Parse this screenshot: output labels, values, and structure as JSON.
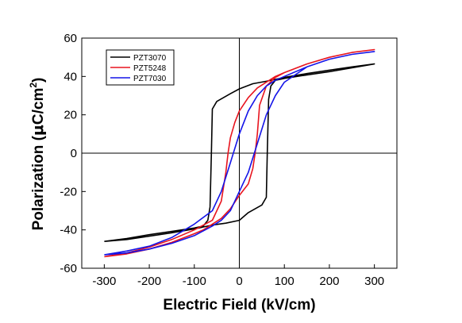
{
  "chart_data": {
    "type": "line",
    "title": "",
    "xlabel": "Electric Field (kV/cm)",
    "ylabel": {
      "main": "Polarization (",
      "mu": "μ",
      "unit": "C/cm",
      "sup": "2",
      "close": ")"
    },
    "xlim": [
      -350,
      350
    ],
    "ylim": [
      -60,
      60
    ],
    "xticks": [
      -300,
      -200,
      -100,
      0,
      100,
      200,
      300
    ],
    "yticks": [
      -60,
      -40,
      -20,
      0,
      20,
      40,
      60
    ],
    "reference_lines": {
      "x": 0,
      "y": 0
    },
    "grid": false,
    "legend_position": "top-left",
    "series": [
      {
        "name": "PZT3070",
        "color": "#000000",
        "x": [
          -300,
          -250,
          -200,
          -150,
          -100,
          -80,
          -70,
          -65,
          -62,
          -60,
          -50,
          -20,
          0,
          30,
          60,
          80,
          100,
          150,
          200,
          250,
          300,
          250,
          200,
          150,
          100,
          80,
          70,
          65,
          62,
          60,
          50,
          20,
          0,
          -30,
          -60,
          -80,
          -100,
          -150,
          -200,
          -250,
          -300
        ],
        "y": [
          -46,
          -44.5,
          -42.5,
          -40.8,
          -39,
          -38,
          -35,
          -28,
          0,
          23,
          27,
          31,
          33.5,
          36.2,
          37.5,
          38.5,
          39.5,
          41.5,
          43.3,
          45,
          46.5,
          44.5,
          42.5,
          40.8,
          39,
          38,
          35,
          28,
          0,
          -23,
          -27,
          -31,
          -35,
          -36.5,
          -37.5,
          -38.5,
          -39.5,
          -41.5,
          -43.3,
          -45,
          -46
        ]
      },
      {
        "name": "PZT5248",
        "color": "#e8141e",
        "x": [
          -300,
          -250,
          -200,
          -150,
          -100,
          -60,
          -40,
          -30,
          -25,
          -20,
          -10,
          0,
          20,
          40,
          60,
          80,
          100,
          150,
          200,
          250,
          300,
          250,
          200,
          150,
          100,
          80,
          60,
          45,
          40,
          35,
          30,
          20,
          0,
          -20,
          -40,
          -60,
          -80,
          -100,
          -150,
          -200,
          -250,
          -300
        ],
        "y": [
          -54,
          -52,
          -49,
          -45,
          -40,
          -35,
          -25,
          -10,
          0,
          8,
          16,
          22,
          29,
          34,
          37,
          40,
          42,
          46.5,
          50,
          52.5,
          54,
          52.5,
          50,
          46.5,
          42,
          39.5,
          35,
          25,
          10,
          0,
          -8,
          -16,
          -22,
          -29,
          -34,
          -37,
          -40,
          -42,
          -46.5,
          -50,
          -52.5,
          -54
        ]
      },
      {
        "name": "PZT7030",
        "color": "#1414e8",
        "x": [
          -300,
          -250,
          -200,
          -150,
          -100,
          -60,
          -40,
          -20,
          0,
          20,
          40,
          60,
          80,
          100,
          150,
          200,
          250,
          300,
          250,
          200,
          150,
          100,
          80,
          60,
          40,
          20,
          0,
          -20,
          -40,
          -60,
          -80,
          -100,
          -150,
          -200,
          -250,
          -300
        ],
        "y": [
          -53,
          -51,
          -48.5,
          -44,
          -37,
          -30,
          -20,
          -5,
          10,
          22,
          30,
          35,
          38,
          40,
          45,
          49,
          51.5,
          53,
          51.5,
          49,
          45,
          37,
          30,
          20,
          5,
          -10,
          -20,
          -30,
          -35,
          -38,
          -40.5,
          -43,
          -47,
          -50,
          -52,
          -53
        ]
      }
    ]
  }
}
